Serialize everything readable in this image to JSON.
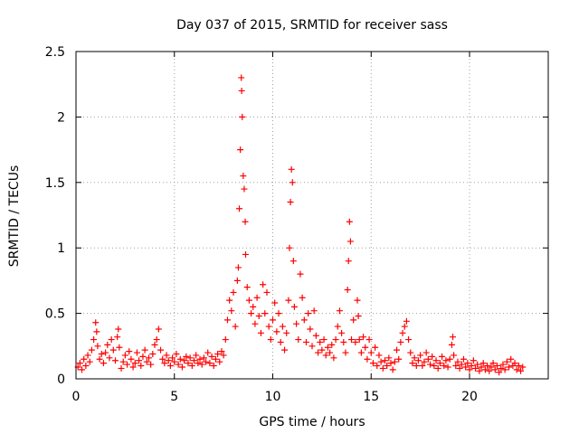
{
  "chart_data": {
    "type": "scatter",
    "title": "Day 037 of 2015, SRMTID for receiver sass",
    "xlabel": "GPS time / hours",
    "ylabel": "SRMTID / TECUs",
    "xlim": [
      0,
      24
    ],
    "ylim": [
      0,
      2.5
    ],
    "xticks": [
      0,
      5,
      10,
      15,
      20
    ],
    "yticks": [
      0,
      0.5,
      1,
      1.5,
      2,
      2.5
    ],
    "ytick_labels": [
      "0",
      "0.5",
      "1",
      "1.5",
      "2",
      "2.5"
    ],
    "grid": true,
    "marker": "plus",
    "color": "#ff0000",
    "series": [
      {
        "name": "SRMTID",
        "points": [
          [
            0.1,
            0.09
          ],
          [
            0.2,
            0.12
          ],
          [
            0.3,
            0.07
          ],
          [
            0.4,
            0.15
          ],
          [
            0.5,
            0.1
          ],
          [
            0.6,
            0.18
          ],
          [
            0.7,
            0.13
          ],
          [
            0.8,
            0.22
          ],
          [
            0.9,
            0.3
          ],
          [
            1.0,
            0.43
          ],
          [
            1.05,
            0.36
          ],
          [
            1.1,
            0.25
          ],
          [
            1.2,
            0.15
          ],
          [
            1.3,
            0.19
          ],
          [
            1.4,
            0.12
          ],
          [
            1.5,
            0.2
          ],
          [
            1.6,
            0.26
          ],
          [
            1.7,
            0.16
          ],
          [
            1.8,
            0.3
          ],
          [
            1.9,
            0.22
          ],
          [
            2.0,
            0.14
          ],
          [
            2.1,
            0.32
          ],
          [
            2.15,
            0.38
          ],
          [
            2.2,
            0.24
          ],
          [
            2.3,
            0.08
          ],
          [
            2.4,
            0.13
          ],
          [
            2.5,
            0.18
          ],
          [
            2.6,
            0.11
          ],
          [
            2.7,
            0.21
          ],
          [
            2.8,
            0.15
          ],
          [
            2.9,
            0.09
          ],
          [
            3.0,
            0.12
          ],
          [
            3.1,
            0.2
          ],
          [
            3.2,
            0.14
          ],
          [
            3.3,
            0.1
          ],
          [
            3.4,
            0.17
          ],
          [
            3.5,
            0.22
          ],
          [
            3.6,
            0.13
          ],
          [
            3.7,
            0.16
          ],
          [
            3.8,
            0.11
          ],
          [
            3.9,
            0.19
          ],
          [
            4.0,
            0.26
          ],
          [
            4.1,
            0.3
          ],
          [
            4.2,
            0.38
          ],
          [
            4.3,
            0.22
          ],
          [
            4.4,
            0.15
          ],
          [
            4.5,
            0.12
          ],
          [
            4.6,
            0.18
          ],
          [
            4.7,
            0.14
          ],
          [
            4.8,
            0.1
          ],
          [
            4.9,
            0.16
          ],
          [
            5.0,
            0.13
          ],
          [
            5.1,
            0.19
          ],
          [
            5.2,
            0.11
          ],
          [
            5.3,
            0.15
          ],
          [
            5.4,
            0.09
          ],
          [
            5.5,
            0.14
          ],
          [
            5.6,
            0.17
          ],
          [
            5.7,
            0.12
          ],
          [
            5.8,
            0.16
          ],
          [
            5.9,
            0.1
          ],
          [
            6.0,
            0.14
          ],
          [
            6.1,
            0.18
          ],
          [
            6.2,
            0.12
          ],
          [
            6.3,
            0.15
          ],
          [
            6.4,
            0.11
          ],
          [
            6.5,
            0.16
          ],
          [
            6.6,
            0.13
          ],
          [
            6.7,
            0.2
          ],
          [
            6.8,
            0.12
          ],
          [
            6.9,
            0.17
          ],
          [
            7.0,
            0.1
          ],
          [
            7.1,
            0.15
          ],
          [
            7.2,
            0.19
          ],
          [
            7.3,
            0.13
          ],
          [
            7.4,
            0.21
          ],
          [
            7.5,
            0.18
          ],
          [
            7.6,
            0.3
          ],
          [
            7.7,
            0.45
          ],
          [
            7.8,
            0.6
          ],
          [
            7.9,
            0.52
          ],
          [
            8.0,
            0.66
          ],
          [
            8.1,
            0.4
          ],
          [
            8.2,
            0.75
          ],
          [
            8.25,
            0.85
          ],
          [
            8.3,
            1.3
          ],
          [
            8.35,
            1.75
          ],
          [
            8.4,
            2.3
          ],
          [
            8.42,
            2.2
          ],
          [
            8.45,
            2.0
          ],
          [
            8.5,
            1.55
          ],
          [
            8.55,
            1.45
          ],
          [
            8.6,
            1.2
          ],
          [
            8.62,
            0.95
          ],
          [
            8.7,
            0.7
          ],
          [
            8.8,
            0.6
          ],
          [
            8.9,
            0.5
          ],
          [
            9.0,
            0.55
          ],
          [
            9.1,
            0.42
          ],
          [
            9.2,
            0.62
          ],
          [
            9.3,
            0.48
          ],
          [
            9.4,
            0.35
          ],
          [
            9.5,
            0.72
          ],
          [
            9.6,
            0.5
          ],
          [
            9.7,
            0.66
          ],
          [
            9.8,
            0.4
          ],
          [
            9.9,
            0.3
          ],
          [
            10.0,
            0.45
          ],
          [
            10.1,
            0.58
          ],
          [
            10.2,
            0.36
          ],
          [
            10.3,
            0.5
          ],
          [
            10.4,
            0.28
          ],
          [
            10.5,
            0.4
          ],
          [
            10.6,
            0.22
          ],
          [
            10.7,
            0.35
          ],
          [
            10.8,
            0.6
          ],
          [
            10.85,
            1.0
          ],
          [
            10.9,
            1.35
          ],
          [
            10.95,
            1.6
          ],
          [
            11.0,
            1.5
          ],
          [
            11.05,
            0.9
          ],
          [
            11.1,
            0.55
          ],
          [
            11.2,
            0.42
          ],
          [
            11.3,
            0.3
          ],
          [
            11.4,
            0.8
          ],
          [
            11.5,
            0.62
          ],
          [
            11.6,
            0.45
          ],
          [
            11.7,
            0.28
          ],
          [
            11.8,
            0.5
          ],
          [
            11.9,
            0.38
          ],
          [
            12.0,
            0.25
          ],
          [
            12.1,
            0.52
          ],
          [
            12.2,
            0.33
          ],
          [
            12.3,
            0.2
          ],
          [
            12.4,
            0.28
          ],
          [
            12.5,
            0.22
          ],
          [
            12.6,
            0.3
          ],
          [
            12.7,
            0.18
          ],
          [
            12.8,
            0.24
          ],
          [
            12.9,
            0.2
          ],
          [
            13.0,
            0.26
          ],
          [
            13.1,
            0.16
          ],
          [
            13.2,
            0.3
          ],
          [
            13.3,
            0.4
          ],
          [
            13.4,
            0.52
          ],
          [
            13.5,
            0.35
          ],
          [
            13.6,
            0.28
          ],
          [
            13.7,
            0.2
          ],
          [
            13.8,
            0.68
          ],
          [
            13.85,
            0.9
          ],
          [
            13.9,
            1.2
          ],
          [
            13.95,
            1.05
          ],
          [
            14.0,
            0.3
          ],
          [
            14.1,
            0.45
          ],
          [
            14.2,
            0.28
          ],
          [
            14.3,
            0.6
          ],
          [
            14.35,
            0.48
          ],
          [
            14.4,
            0.3
          ],
          [
            14.5,
            0.2
          ],
          [
            14.6,
            0.32
          ],
          [
            14.7,
            0.24
          ],
          [
            14.8,
            0.15
          ],
          [
            14.9,
            0.3
          ],
          [
            15.0,
            0.2
          ],
          [
            15.1,
            0.12
          ],
          [
            15.2,
            0.24
          ],
          [
            15.3,
            0.1
          ],
          [
            15.4,
            0.18
          ],
          [
            15.5,
            0.13
          ],
          [
            15.6,
            0.08
          ],
          [
            15.7,
            0.14
          ],
          [
            15.8,
            0.1
          ],
          [
            15.9,
            0.16
          ],
          [
            16.0,
            0.12
          ],
          [
            16.1,
            0.07
          ],
          [
            16.2,
            0.13
          ],
          [
            16.3,
            0.22
          ],
          [
            16.4,
            0.15
          ],
          [
            16.5,
            0.28
          ],
          [
            16.6,
            0.35
          ],
          [
            16.7,
            0.4
          ],
          [
            16.8,
            0.44
          ],
          [
            16.9,
            0.3
          ],
          [
            17.0,
            0.2
          ],
          [
            17.1,
            0.12
          ],
          [
            17.2,
            0.16
          ],
          [
            17.3,
            0.1
          ],
          [
            17.4,
            0.14
          ],
          [
            17.5,
            0.18
          ],
          [
            17.6,
            0.1
          ],
          [
            17.7,
            0.13
          ],
          [
            17.8,
            0.2
          ],
          [
            17.9,
            0.15
          ],
          [
            18.0,
            0.11
          ],
          [
            18.1,
            0.17
          ],
          [
            18.2,
            0.1
          ],
          [
            18.3,
            0.14
          ],
          [
            18.4,
            0.08
          ],
          [
            18.5,
            0.12
          ],
          [
            18.6,
            0.17
          ],
          [
            18.7,
            0.1
          ],
          [
            18.8,
            0.14
          ],
          [
            18.9,
            0.09
          ],
          [
            19.0,
            0.15
          ],
          [
            19.1,
            0.26
          ],
          [
            19.15,
            0.32
          ],
          [
            19.2,
            0.18
          ],
          [
            19.3,
            0.1
          ],
          [
            19.4,
            0.13
          ],
          [
            19.5,
            0.08
          ],
          [
            19.6,
            0.11
          ],
          [
            19.7,
            0.15
          ],
          [
            19.8,
            0.09
          ],
          [
            19.9,
            0.12
          ],
          [
            20.0,
            0.07
          ],
          [
            20.1,
            0.1
          ],
          [
            20.2,
            0.14
          ],
          [
            20.3,
            0.08
          ],
          [
            20.4,
            0.11
          ],
          [
            20.5,
            0.06
          ],
          [
            20.6,
            0.09
          ],
          [
            20.7,
            0.12
          ],
          [
            20.8,
            0.07
          ],
          [
            20.9,
            0.1
          ],
          [
            21.0,
            0.06
          ],
          [
            21.1,
            0.09
          ],
          [
            21.2,
            0.12
          ],
          [
            21.3,
            0.07
          ],
          [
            21.4,
            0.1
          ],
          [
            21.5,
            0.05
          ],
          [
            21.6,
            0.08
          ],
          [
            21.7,
            0.11
          ],
          [
            21.8,
            0.07
          ],
          [
            21.9,
            0.13
          ],
          [
            22.0,
            0.09
          ],
          [
            22.1,
            0.15
          ],
          [
            22.2,
            0.1
          ],
          [
            22.3,
            0.12
          ],
          [
            22.4,
            0.07
          ],
          [
            22.5,
            0.1
          ],
          [
            22.6,
            0.06
          ],
          [
            22.7,
            0.09
          ]
        ]
      }
    ]
  }
}
